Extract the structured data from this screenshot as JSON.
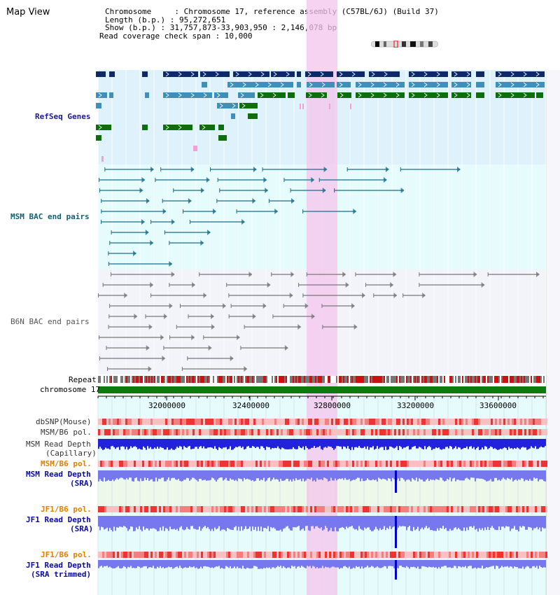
{
  "app": {
    "title": "Map View"
  },
  "header": {
    "chromosome_label": "Chromosome     : Chromosome 17, reference assembly (C57BL/6J) (Build 37)",
    "length_label": "Length (b.p.) : 95,272,651",
    "show_label": "Show (b.p.) : 31,757,873-33,903,950 : 2,146,078 bp",
    "coverage_label": "Read coverage check span : 10,000"
  },
  "tracks": {
    "refseq": "RefSeq Genes",
    "msm_bac": "MSM BAC end pairs",
    "b6n_bac": "B6N BAC end pairs",
    "repeat": "Repeat",
    "chromosome": "chromosome 17",
    "dbsnp": "dbSNP(Mouse)",
    "msm_b6_pol_1": "MSM/B6 pol.",
    "msm_read_depth_cap_1": "MSM Read Depth",
    "msm_read_depth_cap_2": "(Capillary)",
    "msm_b6_pol_2": "MSM/B6 pol.",
    "msm_read_depth_sra_1": "MSM Read Depth",
    "msm_read_depth_sra_2": "(SRA)",
    "jf1_b6_pol_1": "JF1/B6 pol.",
    "jf1_read_depth_1": "JF1 Read Depth",
    "jf1_read_depth_2": "(SRA)",
    "jf1_b6_pol_2": "JF1/B6 pol.",
    "jf1_read_depth_trim_1": "JF1 Read Depth",
    "jf1_read_depth_trim_2": "(SRA trimmed)"
  },
  "ruler": {
    "ticks": [
      "32000000",
      "32400000",
      "32800000",
      "33200000",
      "33600000"
    ]
  },
  "colors": {
    "refseq_bg": "#dff2fb",
    "msm_bg": "#e6fbfb",
    "b6n_bg": "#f2f4fa",
    "highlight": "#f4c4ee",
    "dark_gene": "#0d2a66",
    "mid_gene": "#3f8fb8",
    "green_gene": "#0c6e0c",
    "msm_line": "#1b6e8a",
    "b6n_line": "#777777",
    "chromosome_bar": "#0d7a0d",
    "depth_blue": "#2222dd",
    "depth_light": "#7777ee",
    "track_label_blue": "#0a0aa0",
    "track_label_orange": "#e08000",
    "refseq_label": "#1a1a8c",
    "msm_label": "#106070",
    "b6n_label": "#555555"
  }
}
